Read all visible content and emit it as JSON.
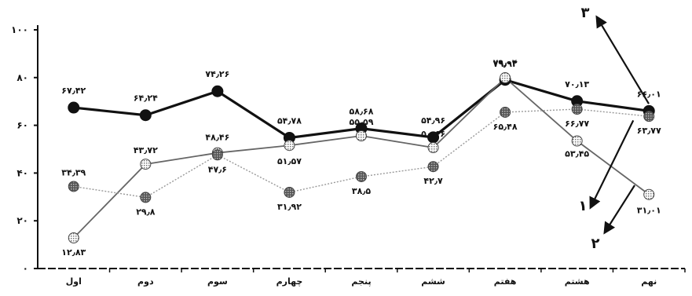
{
  "chart_data": {
    "type": "line",
    "categories": [
      "اول",
      "دوم",
      "سوم",
      "چهارم",
      "پنجم",
      "ششم",
      "هفتم",
      "هشتم",
      "نهم"
    ],
    "y_ticks": [
      "۰",
      "۲۰",
      "۴۰",
      "۶۰",
      "۸۰",
      "۱۰۰"
    ],
    "ylim": [
      0,
      100
    ],
    "grid": false,
    "series": [
      {
        "name": "۱",
        "color": "#111111",
        "marker": "filled-circle",
        "values": [
          67.42,
          64.24,
          74.26,
          54.78,
          58.68,
          54.96,
          79.04,
          70.13,
          66.01
        ],
        "labels": [
          "۶۷٫۴۲",
          "۶۴٫۲۴",
          "۷۴٫۲۶",
          "۵۴٫۷۸",
          "۵۸٫۶۸",
          "۵۴٫۹۶",
          "۷۹٫۰۴",
          "۷۰٫۱۳",
          "۶۶٫۰۱"
        ]
      },
      {
        "name": "۲",
        "color": "#666666",
        "marker": "hatched-circle",
        "values": [
          12.83,
          43.72,
          48.46,
          51.57,
          55.59,
          50.66,
          79.92,
          53.45,
          31.01
        ],
        "labels": [
          "۱۲٫۸۳",
          "۴۳٫۷۲",
          "۴۸٫۴۶",
          "۵۱٫۵۷",
          "۵۵٫۵۹",
          "۵۰٫۶۶",
          "۷۹٫۹۲",
          "۵۳٫۴۵",
          "۳۱٫۰۱"
        ]
      },
      {
        "name": "۳",
        "color": "#999999",
        "marker": "dark-hatched-circle",
        "values": [
          34.39,
          29.8,
          47.6,
          31.92,
          38.5,
          42.7,
          65.48,
          66.77,
          63.77
        ],
        "labels": [
          "۳۴٫۳۹",
          "۲۹٫۸",
          "۴۷٫۶",
          "۳۱٫۹۲",
          "۳۸٫۵",
          "۴۲٫۷",
          "۶۵٫۴۸",
          "۶۶٫۷۷",
          "۶۳٫۷۷"
        ]
      }
    ],
    "arrow_labels": [
      "۱",
      "۲",
      "۳"
    ]
  }
}
